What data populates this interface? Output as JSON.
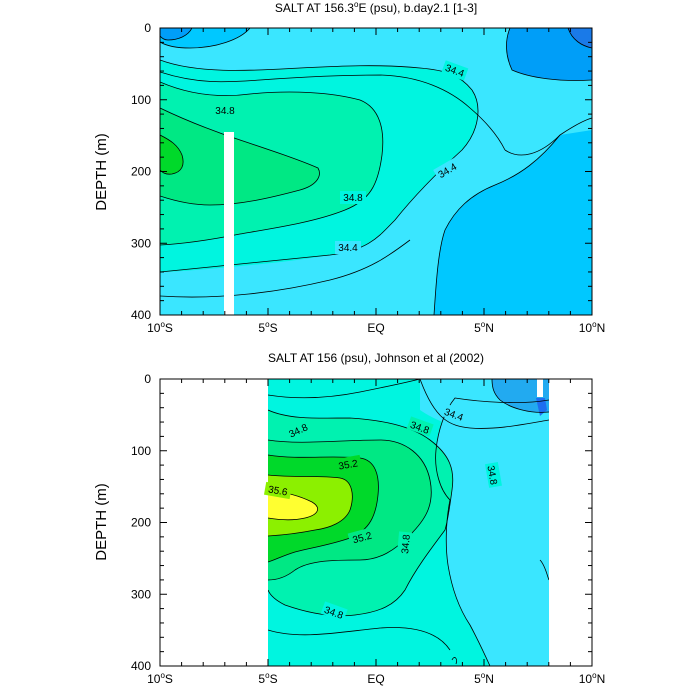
{
  "chart_data": [
    {
      "type": "heatmap",
      "title": "SALT AT 156.3°E (psu), b.day2.1 [1-3]",
      "title_main": "SALT AT 156.3",
      "title_sup": "o",
      "title_rest": "E (psu), b.day2.1 [1-3]",
      "ylabel": "DEPTH (m)",
      "xlim": [
        -10,
        10
      ],
      "ylim": [
        0,
        400
      ],
      "x_ticks": [
        {
          "label": "10",
          "sup": "o",
          "hemi": "S"
        },
        {
          "label": "5",
          "sup": "o",
          "hemi": "S"
        },
        {
          "label": "EQ",
          "sup": "",
          "hemi": ""
        },
        {
          "label": "5",
          "sup": "o",
          "hemi": "N"
        },
        {
          "label": "10",
          "sup": "o",
          "hemi": "N"
        }
      ],
      "y_ticks": [
        "0",
        "100",
        "200",
        "300",
        "400"
      ],
      "contour_labels": [
        "34.8",
        "34.4",
        "34.4",
        "34.8",
        "34.4"
      ],
      "fill_levels": [
        {
          "psu": 34.0,
          "color": "#009ef8"
        },
        {
          "psu": 34.2,
          "color": "#00c8ff"
        },
        {
          "psu": 34.4,
          "color": "#3ae6ff"
        },
        {
          "psu": 34.6,
          "color": "#00f5e0"
        },
        {
          "psu": 34.8,
          "color": "#00f2b0"
        },
        {
          "psu": 35.0,
          "color": "#00e884"
        },
        {
          "psu": 35.2,
          "color": "#00d92a"
        }
      ]
    },
    {
      "type": "heatmap",
      "title": "SALT AT 156 (psu), Johnson et al (2002)",
      "ylabel": "DEPTH (m)",
      "xlim": [
        -10,
        10
      ],
      "ylim": [
        0,
        400
      ],
      "data_extent_lon": [
        -5,
        8
      ],
      "x_ticks": [
        {
          "label": "10",
          "sup": "o",
          "hemi": "S"
        },
        {
          "label": "5",
          "sup": "o",
          "hemi": "S"
        },
        {
          "label": "EQ",
          "sup": "",
          "hemi": ""
        },
        {
          "label": "5",
          "sup": "o",
          "hemi": "N"
        },
        {
          "label": "10",
          "sup": "o",
          "hemi": "N"
        }
      ],
      "y_ticks": [
        "0",
        "100",
        "200",
        "300",
        "400"
      ],
      "contour_labels": [
        "34.8",
        "34.8",
        "34.4",
        "35.2",
        "34.8",
        "35.6",
        "35.2",
        "34.8",
        "34.8"
      ],
      "fill_levels": [
        {
          "psu": 34.0,
          "color": "#1e6ef0"
        },
        {
          "psu": 34.2,
          "color": "#22aaf0"
        },
        {
          "psu": 34.4,
          "color": "#3ae6ff"
        },
        {
          "psu": 34.6,
          "color": "#00f5e0"
        },
        {
          "psu": 34.8,
          "color": "#00f2b0"
        },
        {
          "psu": 35.0,
          "color": "#00e884"
        },
        {
          "psu": 35.2,
          "color": "#00d92a"
        },
        {
          "psu": 35.4,
          "color": "#8cf000"
        },
        {
          "psu": 35.6,
          "color": "#ffff30"
        }
      ]
    }
  ]
}
